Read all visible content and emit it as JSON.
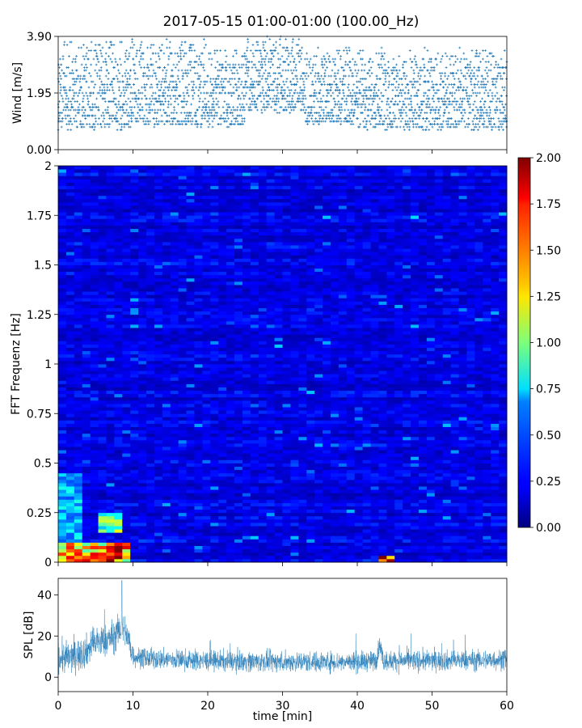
{
  "chart_data": [
    {
      "type": "scatter",
      "title": "2017-05-15 01:00-01:00 (100.00_Hz)",
      "ylabel": "Wind [m/s]",
      "xlabel": "",
      "xlim": [
        0,
        60
      ],
      "ylim": [
        0,
        3.9
      ],
      "yticks": [
        "0.00",
        "1.95",
        "3.90"
      ],
      "marker": "+",
      "color": "#1f77b4",
      "segments": [
        {
          "x": [
            0,
            10
          ],
          "y_min": 0.7,
          "y_max": 3.8
        },
        {
          "x": [
            10,
            20
          ],
          "y_min": 0.8,
          "y_max": 3.8
        },
        {
          "x": [
            20,
            25
          ],
          "y_min": 0.8,
          "y_max": 3.5
        },
        {
          "x": [
            25,
            33
          ],
          "y_min": 1.3,
          "y_max": 3.9
        },
        {
          "x": [
            33,
            40
          ],
          "y_min": 0.9,
          "y_max": 3.6
        },
        {
          "x": [
            40,
            60
          ],
          "y_min": 0.7,
          "y_max": 3.5
        }
      ]
    },
    {
      "type": "heatmap",
      "ylabel": "FFT Frequenz [Hz]",
      "xlabel": "",
      "xlim": [
        0,
        60
      ],
      "ylim": [
        0,
        2
      ],
      "yticks": [
        "0",
        "0.25",
        "0.5",
        "0.75",
        "1",
        "1.25",
        "1.5",
        "1.75",
        "2"
      ],
      "colormap": "jet",
      "background_level": 0.2,
      "hotspots": [
        {
          "x": [
            0,
            10
          ],
          "freq": [
            0,
            0.1
          ],
          "value": 1.6
        },
        {
          "x": [
            5,
            9
          ],
          "freq": [
            0,
            0.08
          ],
          "value": 2.0
        },
        {
          "x": [
            5,
            9
          ],
          "freq": [
            0.15,
            0.25
          ],
          "value": 1.1
        },
        {
          "x": [
            0,
            3
          ],
          "freq": [
            0,
            0.45
          ],
          "value": 0.7
        },
        {
          "x": [
            42.5,
            45
          ],
          "freq": [
            0,
            0.04
          ],
          "value": 2.0
        }
      ],
      "colorbar": {
        "range": [
          0,
          2
        ],
        "ticks": [
          "0.00",
          "0.25",
          "0.50",
          "0.75",
          "1.00",
          "1.25",
          "1.50",
          "1.75",
          "2.00"
        ]
      }
    },
    {
      "type": "line",
      "ylabel": "SPL [dB]",
      "xlabel": "time [min]",
      "xlim": [
        0,
        60
      ],
      "ylim": [
        -7,
        48
      ],
      "yticks": [
        "0",
        "20",
        "40"
      ],
      "xticks": [
        "0",
        "10",
        "20",
        "30",
        "40",
        "50",
        "60"
      ],
      "color": "#1f77b4",
      "trend": {
        "x": [
          0,
          2,
          3.5,
          5,
          6.5,
          7.5,
          8.5,
          9,
          9.5,
          10,
          12,
          20,
          30,
          40,
          42.5,
          43,
          43.5,
          50,
          60
        ],
        "y": [
          9,
          10,
          12,
          17,
          18,
          20,
          24,
          22,
          17,
          10,
          9,
          8,
          7.5,
          7.5,
          8,
          16,
          8,
          8,
          8.5
        ]
      },
      "spread": 4,
      "peak": {
        "x": 8.5,
        "y": 47
      }
    }
  ]
}
